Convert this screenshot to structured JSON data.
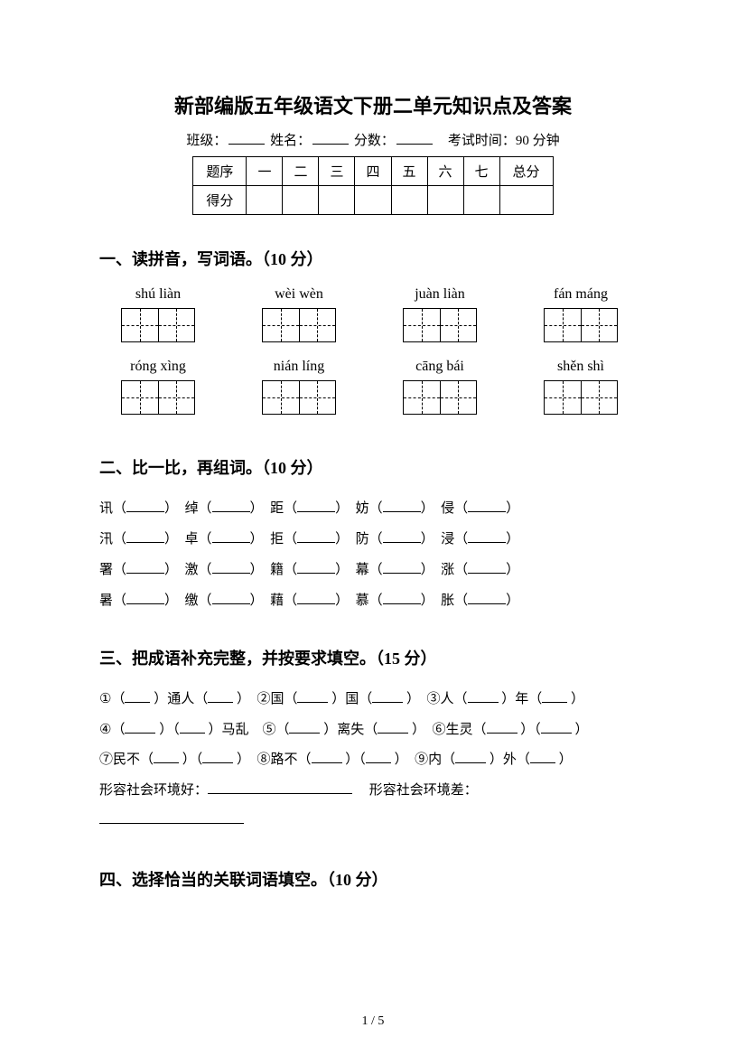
{
  "title": "新部编版五年级语文下册二单元知识点及答案",
  "header": {
    "class_label": "班级：",
    "name_label": "姓名：",
    "score_label": "分数：",
    "exam_time": "考试时间：90 分钟"
  },
  "score_table": {
    "row1": [
      "题序",
      "一",
      "二",
      "三",
      "四",
      "五",
      "六",
      "七",
      "总分"
    ],
    "row2_label": "得分"
  },
  "section1": {
    "title": "一、读拼音，写词语。（10 分）",
    "pinyin_row1": [
      "shú liàn",
      "wèi wèn",
      "juàn liàn",
      "fán máng"
    ],
    "pinyin_row2": [
      "róng xìng",
      "nián líng",
      "cāng bái",
      "shěn shì"
    ]
  },
  "section2": {
    "title": "二、比一比，再组词。（10 分）",
    "lines": [
      [
        "讯",
        "绰",
        "距",
        "妨",
        "侵"
      ],
      [
        "汛",
        "卓",
        "拒",
        "防",
        "浸"
      ],
      [
        "署",
        "激",
        "籍",
        "幕",
        "涨"
      ],
      [
        "暑",
        "缴",
        "藉",
        "慕",
        "胀"
      ]
    ]
  },
  "section3": {
    "title": "三、把成语补充完整，并按要求填空。（15 分）",
    "line1_parts": [
      "①（",
      "）通人（",
      "）　②国（",
      "）国（",
      "）　③人（",
      "）年（",
      "）"
    ],
    "line2_parts": [
      "④（",
      "）（",
      "）马乱　⑤（",
      "）离失（",
      "）　⑥生灵（",
      "）（",
      "）"
    ],
    "line3_parts": [
      "⑦民不（",
      "）（",
      "）　⑧路不（",
      "）（",
      "）　⑨内（",
      "）外（",
      "）"
    ],
    "line4_a": "形容社会环境好：",
    "line4_b": "形容社会环境差："
  },
  "section4": {
    "title": "四、选择恰当的关联词语填空。（10 分）"
  },
  "page_footer": "1 / 5"
}
